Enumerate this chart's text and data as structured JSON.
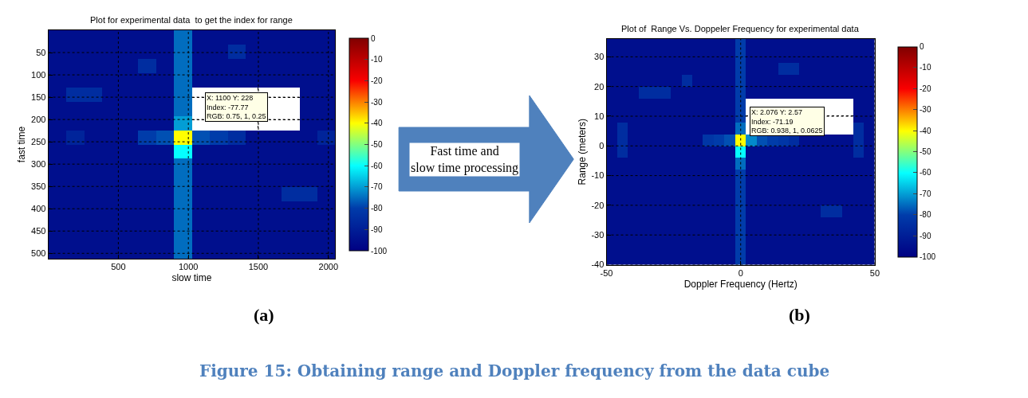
{
  "chart_data": [
    {
      "type": "heatmap",
      "title": "Plot for experimental data  to get the index for range",
      "xlabel": "slow time",
      "ylabel": "fast time",
      "x": [
        64,
        192,
        320,
        448,
        576,
        704,
        832,
        960,
        1088,
        1216,
        1344,
        1472,
        1600,
        1728,
        1856,
        1984
      ],
      "y": [
        16,
        48,
        80,
        112,
        144,
        176,
        208,
        240,
        272,
        304,
        336,
        368,
        400,
        432,
        464,
        496
      ],
      "cells": [
        [
          -95,
          -95,
          -95,
          -95,
          -95,
          -95,
          -95,
          -75,
          -95,
          -95,
          -95,
          -95,
          -95,
          -95,
          -95,
          -95
        ],
        [
          -95,
          -95,
          -95,
          -95,
          -95,
          -95,
          -95,
          -75,
          -95,
          -95,
          -85,
          -95,
          -95,
          -95,
          -95,
          -95
        ],
        [
          -95,
          -95,
          -95,
          -95,
          -95,
          -85,
          -95,
          -75,
          -95,
          -95,
          -95,
          -95,
          -95,
          -95,
          -95,
          -95
        ],
        [
          -95,
          -95,
          -95,
          -95,
          -95,
          -95,
          -95,
          -75,
          -95,
          -95,
          -95,
          -95,
          -95,
          -95,
          -95,
          -95
        ],
        [
          -95,
          -85,
          -85,
          -95,
          -95,
          -95,
          -95,
          -75,
          null,
          null,
          null,
          null,
          null,
          null,
          -95,
          -95
        ],
        [
          -95,
          -95,
          -95,
          -95,
          -95,
          -95,
          -95,
          -75,
          null,
          null,
          null,
          null,
          null,
          null,
          -95,
          -95
        ],
        [
          -95,
          -95,
          -95,
          -95,
          -95,
          -95,
          -95,
          -70,
          null,
          null,
          null,
          null,
          null,
          null,
          -95,
          -95
        ],
        [
          -95,
          -88,
          -95,
          -95,
          -95,
          -80,
          -78,
          -40,
          -78,
          -80,
          -85,
          -95,
          -95,
          -95,
          -95,
          -88
        ],
        [
          -95,
          -95,
          -95,
          -95,
          -95,
          -95,
          -95,
          -60,
          -95,
          -95,
          -95,
          -95,
          -95,
          -95,
          -95,
          -95
        ],
        [
          -95,
          -95,
          -95,
          -95,
          -95,
          -95,
          -95,
          -75,
          -95,
          -95,
          -95,
          -95,
          -95,
          -95,
          -95,
          -95
        ],
        [
          -95,
          -95,
          -95,
          -95,
          -95,
          -95,
          -95,
          -75,
          -95,
          -95,
          -95,
          -95,
          -95,
          -95,
          -95,
          -95
        ],
        [
          -95,
          -95,
          -95,
          -95,
          -95,
          -95,
          -95,
          -75,
          -95,
          -95,
          -95,
          -95,
          -95,
          -85,
          -85,
          -95
        ],
        [
          -95,
          -95,
          -95,
          -95,
          -95,
          -95,
          -95,
          -75,
          -95,
          -95,
          -95,
          -95,
          -95,
          -95,
          -95,
          -95
        ],
        [
          -95,
          -95,
          -95,
          -95,
          -95,
          -95,
          -95,
          -75,
          -95,
          -95,
          -95,
          -95,
          -95,
          -95,
          -95,
          -95
        ],
        [
          -95,
          -95,
          -95,
          -95,
          -95,
          -95,
          -95,
          -75,
          -95,
          -95,
          -95,
          -95,
          -95,
          -95,
          -95,
          -95
        ],
        [
          -95,
          -95,
          -95,
          -95,
          -95,
          -95,
          -95,
          -75,
          -95,
          -95,
          -95,
          -95,
          -95,
          -95,
          -95,
          -95
        ]
      ],
      "xlim": [
        0,
        2048
      ],
      "ylim": [
        512,
        0
      ],
      "xticks": [
        500,
        1000,
        1500,
        2000
      ],
      "yticks": [
        50,
        100,
        150,
        200,
        250,
        300,
        350,
        400,
        450,
        500
      ],
      "clim": [
        -100,
        0
      ],
      "cticks": [
        0,
        -10,
        -20,
        -30,
        -40,
        -50,
        -60,
        -70,
        -80,
        -90,
        -100
      ],
      "grid": true,
      "annotations": [
        "X: 1100 Y: 228\nIndex: -77.77\nRGB: 0.75, 1, 0.25",
        "(a)",
        "Fast time and slow time processing"
      ]
    },
    {
      "type": "heatmap",
      "title": "Plot of  Range Vs. Doppeler Frequency for experimental data",
      "xlabel": "Doppler Frequency (Hertz)",
      "ylabel": "Range (meters)",
      "x": [
        -48,
        -44,
        -40,
        -36,
        -32,
        -28,
        -24,
        -20,
        -16,
        -12,
        -8,
        -4,
        0,
        4,
        8,
        12,
        16,
        20,
        24,
        28,
        32,
        36,
        40,
        44,
        48
      ],
      "y": [
        34,
        30,
        26,
        22,
        18,
        14,
        10,
        6,
        2,
        -2,
        -6,
        -10,
        -14,
        -18,
        -22,
        -26,
        -30,
        -34,
        -38
      ],
      "cells": [
        [
          -95,
          -95,
          -95,
          -95,
          -95,
          -95,
          -95,
          -95,
          -95,
          -95,
          -95,
          -95,
          -80,
          -95,
          -95,
          -95,
          -95,
          -95,
          -95,
          -95,
          -95,
          -95,
          -95,
          -95,
          -95
        ],
        [
          -95,
          -95,
          -95,
          -95,
          -95,
          -95,
          -95,
          -95,
          -95,
          -95,
          -95,
          -95,
          -80,
          -95,
          -95,
          -95,
          -95,
          -95,
          -95,
          -95,
          -95,
          -95,
          -95,
          -95,
          -95
        ],
        [
          -95,
          -95,
          -95,
          -95,
          -95,
          -95,
          -95,
          -95,
          -95,
          -95,
          -95,
          -95,
          -80,
          -95,
          -95,
          -95,
          -85,
          -85,
          -95,
          -95,
          -95,
          -95,
          -95,
          -95,
          -95
        ],
        [
          -95,
          -95,
          -95,
          -95,
          -95,
          -95,
          -95,
          -85,
          -95,
          -95,
          -95,
          -95,
          -80,
          -95,
          -95,
          -95,
          -95,
          -95,
          -95,
          -95,
          -95,
          -95,
          -95,
          -95,
          -95
        ],
        [
          -95,
          -95,
          -95,
          -85,
          -85,
          -85,
          -95,
          -95,
          -95,
          -95,
          -95,
          -95,
          -80,
          -95,
          -95,
          -95,
          -95,
          -95,
          -95,
          -95,
          -95,
          -95,
          -95,
          -95,
          -95
        ],
        [
          -95,
          -95,
          -95,
          -95,
          -95,
          -95,
          -95,
          -95,
          -95,
          -95,
          -95,
          -95,
          -80,
          null,
          null,
          null,
          null,
          null,
          null,
          null,
          null,
          null,
          null,
          -95,
          -95
        ],
        [
          -95,
          -95,
          -95,
          -95,
          -95,
          -95,
          -95,
          -95,
          -95,
          -95,
          -95,
          -95,
          -80,
          null,
          null,
          null,
          null,
          null,
          null,
          null,
          null,
          null,
          null,
          -95,
          -95
        ],
        [
          -95,
          -85,
          -95,
          -95,
          -95,
          -95,
          -95,
          -95,
          -95,
          -95,
          -95,
          -95,
          -75,
          null,
          null,
          null,
          null,
          null,
          null,
          null,
          null,
          null,
          null,
          -85,
          -95
        ],
        [
          -95,
          -85,
          -95,
          -95,
          -95,
          -95,
          -95,
          -95,
          -95,
          -82,
          -80,
          -78,
          -40,
          -72,
          -78,
          -80,
          -82,
          -85,
          -95,
          -95,
          -95,
          -95,
          -95,
          -85,
          -95
        ],
        [
          -95,
          -85,
          -95,
          -95,
          -95,
          -95,
          -95,
          -95,
          -95,
          -95,
          -95,
          -95,
          -60,
          -95,
          -95,
          -95,
          -95,
          -95,
          -95,
          -95,
          -95,
          -95,
          -95,
          -85,
          -95
        ],
        [
          -95,
          -95,
          -95,
          -95,
          -95,
          -95,
          -95,
          -95,
          -95,
          -95,
          -95,
          -95,
          -75,
          -95,
          -95,
          -95,
          -95,
          -95,
          -95,
          -95,
          -95,
          -95,
          -95,
          -95,
          -95
        ],
        [
          -95,
          -95,
          -95,
          -95,
          -95,
          -95,
          -95,
          -95,
          -95,
          -95,
          -95,
          -95,
          -80,
          -95,
          -95,
          -95,
          -95,
          -95,
          -95,
          -95,
          -95,
          -95,
          -95,
          -95,
          -95
        ],
        [
          -95,
          -95,
          -95,
          -95,
          -95,
          -95,
          -95,
          -95,
          -95,
          -95,
          -95,
          -95,
          -80,
          -95,
          -95,
          -95,
          -95,
          -95,
          -95,
          -95,
          -95,
          -95,
          -95,
          -95,
          -95
        ],
        [
          -95,
          -95,
          -95,
          -95,
          -95,
          -95,
          -95,
          -95,
          -95,
          -95,
          -95,
          -95,
          -80,
          -95,
          -95,
          -95,
          -95,
          -95,
          -95,
          -95,
          -95,
          -95,
          -95,
          -95,
          -95
        ],
        [
          -95,
          -95,
          -95,
          -95,
          -95,
          -95,
          -95,
          -95,
          -95,
          -95,
          -95,
          -95,
          -80,
          -95,
          -95,
          -95,
          -95,
          -95,
          -95,
          -95,
          -85,
          -85,
          -95,
          -95,
          -95
        ],
        [
          -95,
          -95,
          -95,
          -95,
          -95,
          -95,
          -95,
          -95,
          -95,
          -95,
          -95,
          -95,
          -80,
          -95,
          -95,
          -95,
          -95,
          -95,
          -95,
          -95,
          -95,
          -95,
          -95,
          -95,
          -95
        ],
        [
          -95,
          -95,
          -95,
          -95,
          -95,
          -95,
          -95,
          -95,
          -95,
          -95,
          -95,
          -95,
          -80,
          -95,
          -95,
          -95,
          -95,
          -95,
          -95,
          -95,
          -95,
          -95,
          -95,
          -95,
          -95
        ],
        [
          -95,
          -95,
          -95,
          -95,
          -95,
          -95,
          -95,
          -95,
          -95,
          -95,
          -95,
          -95,
          -80,
          -95,
          -95,
          -95,
          -95,
          -95,
          -95,
          -95,
          -95,
          -95,
          -95,
          -95,
          -95
        ],
        [
          -95,
          -95,
          -95,
          -95,
          -95,
          -95,
          -95,
          -95,
          -95,
          -95,
          -95,
          -95,
          -80,
          -95,
          -95,
          -95,
          -95,
          -95,
          -95,
          -95,
          -95,
          -95,
          -95,
          -95,
          -95
        ]
      ],
      "xlim": [
        -50,
        50
      ],
      "ylim": [
        -40,
        36
      ],
      "xticks": [
        -50,
        0,
        50
      ],
      "yticks": [
        -40,
        -30,
        -20,
        -10,
        0,
        10,
        20,
        30
      ],
      "clim": [
        -100,
        0
      ],
      "cticks": [
        0,
        -10,
        -20,
        -30,
        -40,
        -50,
        -60,
        -70,
        -80,
        -90,
        -100
      ],
      "grid": true,
      "annotations": [
        "X: 2.076 Y: 2.57\nIndex: -71.19\nRGB: 0.938, 1, 0.0625",
        "(b)",
        "Figure 15: Obtaining range and Doppler frequency from the data cube"
      ]
    }
  ]
}
